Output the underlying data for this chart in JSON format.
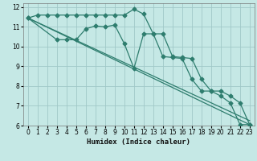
{
  "xlabel": "Humidex (Indice chaleur)",
  "bg_color": "#c5e8e5",
  "grid_color": "#a0c8c8",
  "line_color": "#2e7d6e",
  "xlim": [
    -0.5,
    23.5
  ],
  "ylim": [
    6,
    12.2
  ],
  "xticks": [
    0,
    1,
    2,
    3,
    4,
    5,
    6,
    7,
    8,
    9,
    10,
    11,
    12,
    13,
    14,
    15,
    16,
    17,
    18,
    19,
    20,
    21,
    22,
    23
  ],
  "yticks": [
    6,
    7,
    8,
    9,
    10,
    11,
    12
  ],
  "line1_x": [
    0,
    1,
    2,
    3,
    4,
    5,
    6,
    7,
    8,
    9,
    10,
    11,
    12,
    13,
    14,
    15,
    16,
    17,
    18,
    19,
    20,
    21,
    22,
    23
  ],
  "line1_y": [
    11.45,
    11.6,
    11.6,
    11.6,
    11.6,
    11.6,
    11.6,
    11.6,
    11.6,
    11.6,
    11.6,
    11.9,
    11.65,
    10.65,
    10.65,
    9.5,
    9.45,
    9.4,
    8.35,
    7.75,
    7.75,
    7.5,
    7.15,
    6.05
  ],
  "line2_x": [
    0,
    3,
    4,
    5,
    6,
    7,
    8,
    9,
    10,
    11,
    12,
    13,
    14,
    15,
    16,
    17,
    18,
    19,
    20,
    21,
    22,
    23
  ],
  "line2_y": [
    11.45,
    10.35,
    10.35,
    10.35,
    10.9,
    11.05,
    11.0,
    11.1,
    10.15,
    8.9,
    10.65,
    10.65,
    9.5,
    9.45,
    9.4,
    8.35,
    7.75,
    7.75,
    7.5,
    7.15,
    6.05,
    6.05
  ],
  "line3_x": [
    0,
    23
  ],
  "line3_y": [
    11.45,
    6.25
  ],
  "line4_x": [
    0,
    23
  ],
  "line4_y": [
    11.45,
    6.05
  ],
  "marker_size": 2.5,
  "linewidth": 0.9,
  "xlabel_fontsize": 6.5,
  "tick_fontsize": 5.5
}
